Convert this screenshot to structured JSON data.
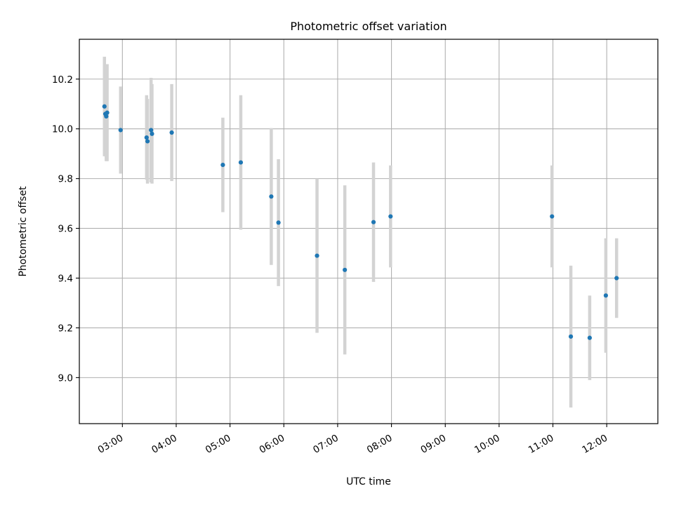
{
  "chart_data": {
    "type": "scatter",
    "title": "Photometric offset variation",
    "xlabel": "UTC time",
    "ylabel": "Photometric offset",
    "xlim": [
      "02:12",
      "12:57"
    ],
    "ylim": [
      8.815,
      10.36
    ],
    "x_ticks": [
      "03:00",
      "04:00",
      "05:00",
      "06:00",
      "07:00",
      "08:00",
      "09:00",
      "10:00",
      "11:00",
      "12:00"
    ],
    "y_ticks": [
      "9.0",
      "9.2",
      "9.4",
      "9.6",
      "9.8",
      "10.0",
      "10.2"
    ],
    "grid": true,
    "points": [
      {
        "time": "02:40",
        "y": 10.09,
        "err": 0.2
      },
      {
        "time": "02:41",
        "y": 10.06,
        "err": 0.17
      },
      {
        "time": "02:42",
        "y": 10.05,
        "err": 0.18
      },
      {
        "time": "02:43",
        "y": 10.065,
        "err": 0.195
      },
      {
        "time": "02:58",
        "y": 9.995,
        "err": 0.175
      },
      {
        "time": "03:27",
        "y": 9.965,
        "err": 0.17
      },
      {
        "time": "03:28",
        "y": 9.95,
        "err": 0.17
      },
      {
        "time": "03:32",
        "y": 9.995,
        "err": 0.21
      },
      {
        "time": "03:33",
        "y": 9.98,
        "err": 0.2
      },
      {
        "time": "03:55",
        "y": 9.985,
        "err": 0.195
      },
      {
        "time": "04:52",
        "y": 9.855,
        "err": 0.19
      },
      {
        "time": "05:12",
        "y": 9.865,
        "err": 0.27
      },
      {
        "time": "05:46",
        "y": 9.728,
        "err": 0.275
      },
      {
        "time": "05:54",
        "y": 9.623,
        "err": 0.255
      },
      {
        "time": "06:37",
        "y": 9.49,
        "err": 0.31
      },
      {
        "time": "07:08",
        "y": 9.433,
        "err": 0.34
      },
      {
        "time": "07:40",
        "y": 9.625,
        "err": 0.24
      },
      {
        "time": "07:59",
        "y": 9.648,
        "err": 0.205
      },
      {
        "time": "10:59",
        "y": 9.648,
        "err": 0.205
      },
      {
        "time": "11:20",
        "y": 9.165,
        "err": 0.285
      },
      {
        "time": "11:41",
        "y": 9.16,
        "err": 0.17
      },
      {
        "time": "11:59",
        "y": 9.33,
        "err": 0.23
      },
      {
        "time": "12:11",
        "y": 9.4,
        "err": 0.16
      }
    ],
    "colors": {
      "marker": "#1f77b4",
      "errorbar": "#d3d3d3",
      "grid": "#b0b0b0"
    }
  }
}
